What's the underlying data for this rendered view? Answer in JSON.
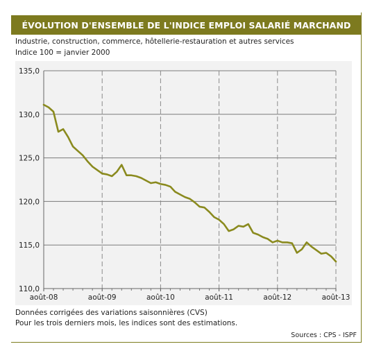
{
  "header": {
    "title": "ÉVOLUTION D'ENSEMBLE DE L'INDICE EMPLOI SALARIÉ MARCHAND",
    "subtitle_line1": "Industrie, construction, commerce, hôtellerie-restauration et autres services",
    "subtitle_line2": "Indice 100 = janvier 2000"
  },
  "footer": {
    "note_line1": "Données corrigées des variations saisonnières (CVS)",
    "note_line2": "Pour les trois derniers mois, les indices sont des estimations.",
    "source": "Sources : CPS - ISPF"
  },
  "colors": {
    "banner": "#7d7a1f",
    "series": "#8a8a1e",
    "plot_background": "#f2f2f2",
    "grid": "#8a8a8a"
  },
  "chart_data": {
    "type": "line",
    "title": "ÉVOLUTION D'ENSEMBLE DE L'INDICE EMPLOI SALARIÉ MARCHAND",
    "xlabel": "",
    "ylabel": "",
    "ylim": [
      110,
      135
    ],
    "yticks": [
      "110,0",
      "115,0",
      "120,0",
      "125,0",
      "130,0",
      "135,0"
    ],
    "ytick_values": [
      110,
      115,
      120,
      125,
      130,
      135
    ],
    "xticks": [
      "août-08",
      "août-09",
      "août-10",
      "août-11",
      "août-12",
      "août-13"
    ],
    "xtick_months": [
      0,
      12,
      24,
      36,
      48,
      60
    ],
    "x_range_months": [
      0,
      60
    ],
    "grid": {
      "horizontal": "solid",
      "vertical": "dashed"
    },
    "legend": "none",
    "series": [
      {
        "values": [
          131.1,
          130.8,
          130.3,
          128.0,
          128.3,
          127.4,
          126.3,
          125.8,
          125.3,
          124.6,
          124.0,
          123.6,
          123.2,
          123.1,
          122.9,
          123.4,
          124.2,
          123.0,
          123.0,
          122.9,
          122.7,
          122.4,
          122.1,
          122.2,
          122.0,
          121.9,
          121.7,
          121.1,
          120.8,
          120.5,
          120.3,
          119.9,
          119.4,
          119.3,
          118.8,
          118.2,
          117.9,
          117.4,
          116.6,
          116.8,
          117.2,
          117.1,
          117.4,
          116.4,
          116.2,
          115.9,
          115.7,
          115.3,
          115.5,
          115.3,
          115.3,
          115.2,
          114.1,
          114.5,
          115.3,
          114.8,
          114.4,
          114.0,
          114.1,
          113.7,
          113.1
        ]
      }
    ]
  }
}
